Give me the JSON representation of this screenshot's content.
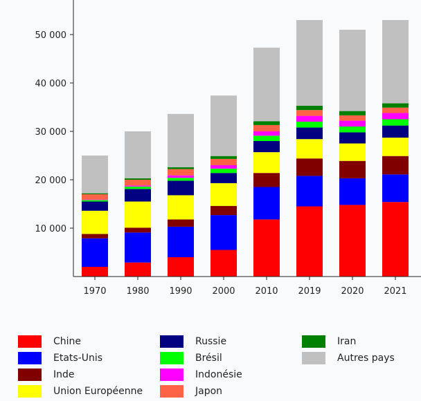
{
  "chart_data": {
    "type": "bar",
    "stacked": true,
    "categories": [
      "1970",
      "1980",
      "1990",
      "2000",
      "2010",
      "2019",
      "2020",
      "2021"
    ],
    "ylim": [
      0,
      55000
    ],
    "yticks": [
      10000,
      20000,
      30000,
      40000,
      50000
    ],
    "ytick_labels": [
      "10 000",
      "20 000",
      "30 000",
      "40 000",
      "50 000"
    ],
    "title": "",
    "xlabel": "",
    "ylabel": "",
    "grid": false,
    "legend_position": "bottom",
    "series": [
      {
        "name": "Chine",
        "color": "#ff0000",
        "values": [
          2000,
          2900,
          4000,
          5500,
          11800,
          14500,
          14800,
          15400
        ]
      },
      {
        "name": "Etats-Unis",
        "color": "#0000ff",
        "values": [
          5900,
          6200,
          6300,
          7200,
          6700,
          6300,
          5500,
          5700
        ]
      },
      {
        "name": "Inde",
        "color": "#800000",
        "values": [
          900,
          1000,
          1500,
          1900,
          2900,
          3600,
          3600,
          3800
        ]
      },
      {
        "name": "Union Européenne",
        "color": "#ffff00",
        "values": [
          4800,
          5400,
          5000,
          4700,
          4300,
          4000,
          3600,
          3800
        ]
      },
      {
        "name": "Russie",
        "color": "#000080",
        "values": [
          1900,
          2600,
          3000,
          2100,
          2300,
          2400,
          2300,
          2500
        ]
      },
      {
        "name": "Brésil",
        "color": "#00ff00",
        "values": [
          300,
          500,
          600,
          900,
          1100,
          1200,
          1200,
          1300
        ]
      },
      {
        "name": "Indonésie",
        "color": "#ff00ff",
        "values": [
          100,
          200,
          500,
          700,
          900,
          1200,
          1200,
          1300
        ]
      },
      {
        "name": "Japon",
        "color": "#ff6347",
        "values": [
          1100,
          1200,
          1300,
          1300,
          1300,
          1200,
          1100,
          1100
        ]
      },
      {
        "name": "Iran",
        "color": "#008000",
        "values": [
          200,
          300,
          400,
          600,
          800,
          900,
          900,
          900
        ]
      },
      {
        "name": "Autres pays",
        "color": "#c0c0c0",
        "values": [
          7800,
          9700,
          11000,
          12500,
          15200,
          17700,
          16800,
          17200
        ]
      }
    ]
  }
}
